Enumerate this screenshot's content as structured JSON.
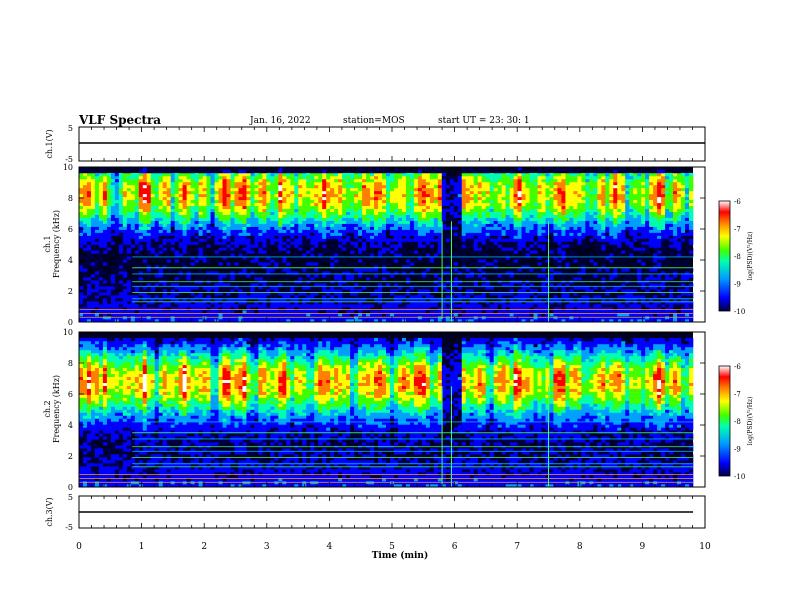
{
  "header": {
    "title": "VLF Spectra",
    "date": "Jan. 16, 2022",
    "station": "station=MOS",
    "start": "start  UT =  23: 30: 1"
  },
  "chart_data": [
    {
      "type": "line",
      "panel": "ch1-waveform",
      "ylabel": "ch.1(V)",
      "ylim": [
        -5,
        5
      ],
      "yticks": [
        "5",
        "-5"
      ],
      "series": [
        {
          "values": [
            0,
            0
          ]
        }
      ],
      "x": [
        0,
        10
      ]
    },
    {
      "type": "heatmap",
      "panel": "ch1-spectrogram",
      "ylabel": "ch.1\nFrequency (kHz)",
      "ylabel_line1": "ch.1",
      "ylabel_line2": "Frequency (kHz)",
      "ylim": [
        0,
        10
      ],
      "yticks": [
        "0",
        "2",
        "4",
        "6",
        "8",
        "10"
      ],
      "xlim": [
        0,
        10
      ],
      "band_center_khz": 8.3,
      "dense_gaps_min": [
        5.8,
        6.0
      ],
      "colorbar": {
        "label": "log(PSD)(V²/Hz)",
        "range": [
          -10,
          -6
        ],
        "ticks": [
          "-6",
          "-7",
          "-8",
          "-9",
          "-10"
        ]
      }
    },
    {
      "type": "heatmap",
      "panel": "ch2-spectrogram",
      "ylabel_line1": "ch.2",
      "ylabel_line2": "Frequency (kHz)",
      "ylim": [
        0,
        10
      ],
      "yticks": [
        "0",
        "2",
        "4",
        "6",
        "8",
        "10"
      ],
      "xlim": [
        0,
        10
      ],
      "band_center_khz": 6.8,
      "colorbar": {
        "label": "log(PSD)(V²/Hz)",
        "range": [
          -10,
          -6
        ],
        "ticks": [
          "-6",
          "-7",
          "-8",
          "-9",
          "-10"
        ]
      }
    },
    {
      "type": "line",
      "panel": "ch3-waveform",
      "ylabel": "ch.3(V)",
      "ylim": [
        -5,
        5
      ],
      "yticks": [
        "5",
        "-5"
      ],
      "series": [
        {
          "values": [
            0,
            0
          ]
        }
      ],
      "x": [
        0,
        10
      ],
      "xlabel": "Time (min)",
      "xticks": [
        "0",
        "1",
        "2",
        "3",
        "4",
        "5",
        "6",
        "7",
        "8",
        "9",
        "10"
      ]
    }
  ],
  "colors": {
    "ramp": [
      "#000040",
      "#0000ff",
      "#00a0ff",
      "#00ffb0",
      "#40ff00",
      "#ffff00",
      "#ff8000",
      "#ff0000",
      "#ffffff"
    ]
  }
}
